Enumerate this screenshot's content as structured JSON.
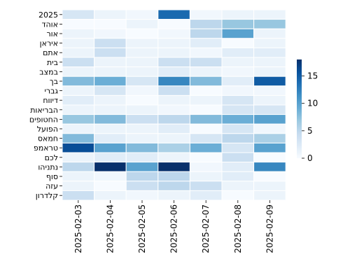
{
  "chart_data": {
    "type": "heatmap",
    "title": "",
    "xlabel": "",
    "ylabel": "",
    "x": [
      "2025-02-03",
      "2025-02-04",
      "2025-02-05",
      "2025-02-06",
      "2025-02-07",
      "2025-02-08",
      "2025-02-09"
    ],
    "y": [
      "2025",
      "אוהד",
      "אור",
      "איראן",
      "אתם",
      "בית",
      "במצב",
      "בך",
      "גברי",
      "דיווח",
      "הבריאות",
      "החטופים",
      "הפועל",
      "חמאס",
      "טראמפ",
      "לכם",
      "נתניהו",
      "סוף",
      "עזה",
      "קלדרון"
    ],
    "values": [
      [
        3,
        1,
        0.5,
        14,
        0.5,
        1,
        1
      ],
      [
        0,
        0,
        1,
        0,
        5,
        7,
        7
      ],
      [
        1,
        0.5,
        0,
        0.5,
        5,
        10,
        1
      ],
      [
        1,
        4,
        1,
        1,
        2,
        0,
        1
      ],
      [
        1,
        4,
        1,
        1,
        0.5,
        2,
        2
      ],
      [
        4,
        1,
        1,
        4,
        4,
        1,
        1
      ],
      [
        1,
        1,
        1,
        2,
        1,
        0.5,
        1
      ],
      [
        8,
        9,
        3,
        12,
        8,
        2,
        15
      ],
      [
        1,
        3,
        0.5,
        4,
        0,
        0.5,
        0.5
      ],
      [
        2,
        1,
        0,
        1,
        1,
        3,
        1
      ],
      [
        1,
        1,
        1,
        0.5,
        0,
        3,
        3
      ],
      [
        7,
        8,
        4,
        5,
        8,
        9,
        10
      ],
      [
        1,
        1,
        1,
        2,
        0,
        3,
        0.5
      ],
      [
        8,
        2,
        1,
        1,
        3,
        5,
        6
      ],
      [
        16,
        10,
        8,
        6,
        9,
        3,
        10
      ],
      [
        1,
        2,
        2,
        1,
        0,
        4,
        0
      ],
      [
        5,
        18,
        10,
        19,
        0.5,
        2,
        12
      ],
      [
        1,
        0.5,
        5,
        5,
        1,
        2,
        0
      ],
      [
        1,
        0,
        4,
        5,
        4,
        1,
        1
      ],
      [
        4,
        1,
        0.5,
        1,
        2,
        0,
        1
      ]
    ],
    "colormap": "Blues",
    "colorbar": {
      "ticks": [
        0,
        5,
        10,
        15
      ],
      "range": [
        0,
        18
      ]
    },
    "grid_lines_color": "#ffffff"
  }
}
